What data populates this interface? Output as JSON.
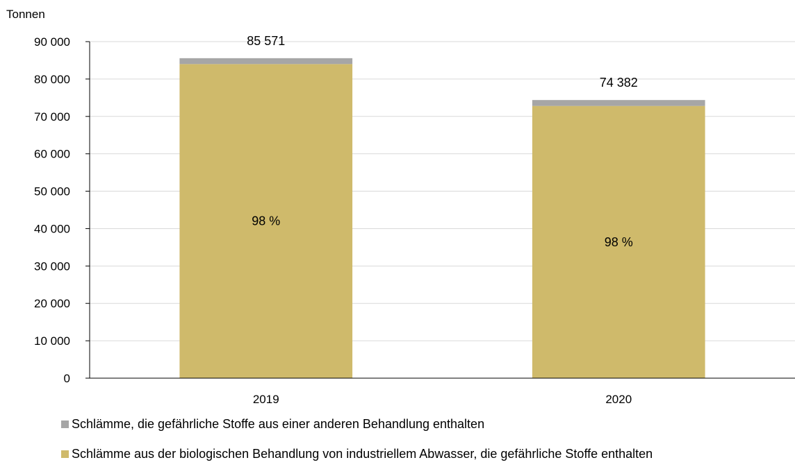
{
  "chart_data": {
    "type": "bar",
    "stacked": true,
    "ylabel": "Tonnen",
    "ylim": [
      0,
      90000
    ],
    "yticks": [
      0,
      10000,
      20000,
      30000,
      40000,
      50000,
      60000,
      70000,
      80000,
      90000
    ],
    "ytick_labels": [
      "0",
      "10 000",
      "20 000",
      "30 000",
      "40 000",
      "50 000",
      "60 000",
      "70 000",
      "80 000",
      "90 000"
    ],
    "grid": true,
    "legend_position": "bottom",
    "categories": [
      "2019",
      "2020"
    ],
    "series": [
      {
        "name": "Schlämme aus der biologischen Behandlung von industriellem Abwasser, die gefährliche Stoffe enthalten",
        "color": "#CFBA6B",
        "values": [
          84000,
          72800
        ],
        "labels": [
          "98 %",
          "98 %"
        ]
      },
      {
        "name": "Schlämme, die gefährliche Stoffe aus einer anderen Behandlung enthalten",
        "color": "#A6A6A6",
        "values": [
          1571,
          1582
        ]
      }
    ],
    "totals": [
      85571,
      74382
    ],
    "total_labels": [
      "85 571",
      "74 382"
    ]
  }
}
